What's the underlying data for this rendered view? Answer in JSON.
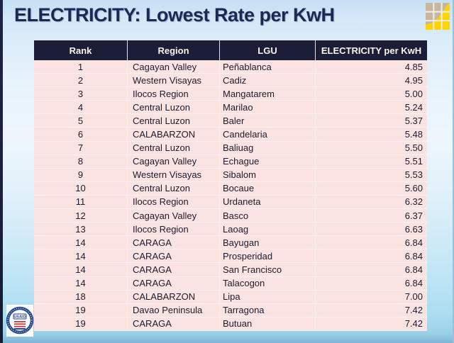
{
  "slide": {
    "title": "ELECTRICITY: Lowest Rate per KwH"
  },
  "logo": {
    "text": "USAID"
  },
  "colors": {
    "header_bg": "#1c1e38",
    "header_text": "#f8f6ee",
    "row_bg": "#fbe3e1",
    "row_divider": "#fdf2f1",
    "title_text": "#1b2a55",
    "left_strip": "#1a203c",
    "grid_icon_tan": "#c7b79e",
    "grid_icon_yellow": "#ffd400",
    "seal_navy": "#2a4a8f",
    "seal_red": "#c23a3a",
    "background_top": "#c6dff3",
    "background_bottom": "#7eb4d3"
  },
  "table": {
    "columns": [
      "Rank",
      "Region",
      "LGU",
      "ELECTRICITY per KwH"
    ],
    "rows": [
      {
        "rank": "1",
        "region": "Cagayan Valley",
        "lgu": "Peñablanca",
        "rate": "4.85"
      },
      {
        "rank": "2",
        "region": "Western Visayas",
        "lgu": "Cadiz",
        "rate": "4.95"
      },
      {
        "rank": "3",
        "region": "Ilocos Region",
        "lgu": "Mangatarem",
        "rate": "5.00"
      },
      {
        "rank": "4",
        "region": "Central Luzon",
        "lgu": "Marilao",
        "rate": "5.24"
      },
      {
        "rank": "5",
        "region": "Central Luzon",
        "lgu": "Baler",
        "rate": "5.37"
      },
      {
        "rank": "6",
        "region": "CALABARZON",
        "lgu": "Candelaria",
        "rate": "5.48"
      },
      {
        "rank": "7",
        "region": "Central Luzon",
        "lgu": "Baliuag",
        "rate": "5.50"
      },
      {
        "rank": "8",
        "region": "Cagayan Valley",
        "lgu": "Echague",
        "rate": "5.51"
      },
      {
        "rank": "9",
        "region": "Western Visayas",
        "lgu": "Sibalom",
        "rate": "5.53"
      },
      {
        "rank": "10",
        "region": "Central Luzon",
        "lgu": "Bocaue",
        "rate": "5.60"
      },
      {
        "rank": "11",
        "region": "Ilocos Region",
        "lgu": "Urdaneta",
        "rate": "6.32"
      },
      {
        "rank": "12",
        "region": "Cagayan Valley",
        "lgu": "Basco",
        "rate": "6.37"
      },
      {
        "rank": "13",
        "region": "Ilocos Region",
        "lgu": "Laoag",
        "rate": "6.63"
      },
      {
        "rank": "14",
        "region": "CARAGA",
        "lgu": "Bayugan",
        "rate": "6.84"
      },
      {
        "rank": "14",
        "region": "CARAGA",
        "lgu": "Prosperidad",
        "rate": "6.84"
      },
      {
        "rank": "14",
        "region": "CARAGA",
        "lgu": "San Francisco",
        "rate": "6.84"
      },
      {
        "rank": "14",
        "region": "CARAGA",
        "lgu": "Talacogon",
        "rate": "6.84"
      },
      {
        "rank": "18",
        "region": "CALABARZON",
        "lgu": "Lipa",
        "rate": "7.00"
      },
      {
        "rank": "19",
        "region": "Davao Peninsula",
        "lgu": "Tarragona",
        "rate": "7.42"
      },
      {
        "rank": "19",
        "region": "CARAGA",
        "lgu": "Butuan",
        "rate": "7.42"
      }
    ]
  }
}
